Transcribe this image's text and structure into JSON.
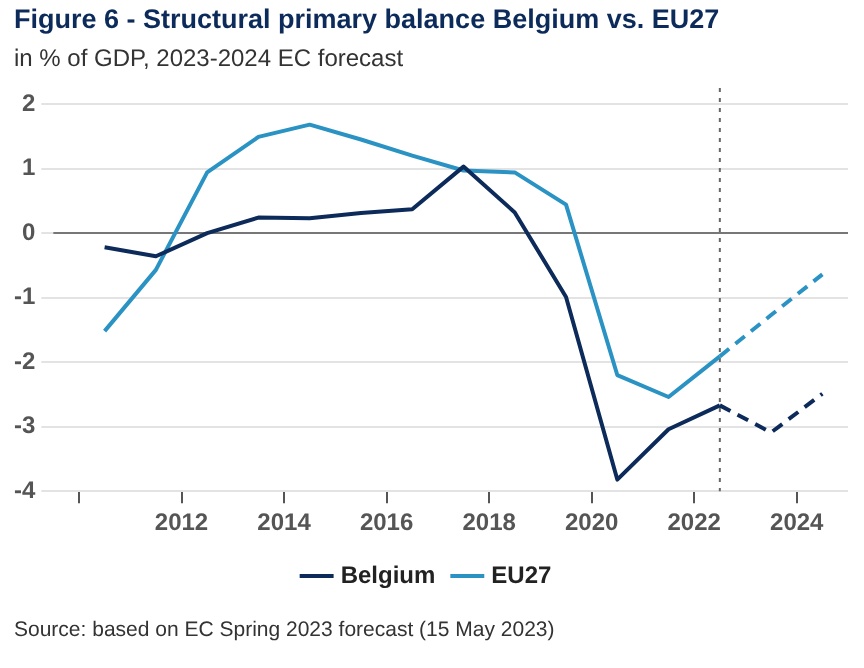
{
  "chart_data": {
    "type": "line",
    "title": "Figure 6 - Structural primary balance Belgium vs. EU27",
    "subtitle": "in % of GDP, 2023-2024 EC forecast",
    "x": [
      2010.5,
      2011.5,
      2012.5,
      2013.5,
      2014.5,
      2015.5,
      2016.5,
      2017.5,
      2018.5,
      2019.5,
      2020.5,
      2021.5,
      2022.5,
      2023.5,
      2024.5
    ],
    "series": [
      {
        "name": "Belgium",
        "color": "#0d2b5a",
        "values": [
          -0.22,
          -0.36,
          0.0,
          0.24,
          0.23,
          0.31,
          0.37,
          1.03,
          0.32,
          -0.99,
          -3.82,
          -3.04,
          -2.67,
          null,
          null
        ]
      },
      {
        "name": "EU27",
        "color": "#2a93c4",
        "values": [
          -1.52,
          -0.57,
          0.94,
          1.49,
          1.68,
          1.45,
          1.2,
          0.97,
          0.94,
          0.44,
          -2.2,
          -2.54,
          -1.91,
          null,
          null
        ]
      },
      {
        "color": "#0d2b5a",
        "line_style": "dashed",
        "values": [
          null,
          null,
          null,
          null,
          null,
          null,
          null,
          null,
          null,
          null,
          null,
          null,
          -2.67,
          -3.09,
          -2.49
        ]
      },
      {
        "color": "#2a93c4",
        "line_style": "dashed",
        "values": [
          null,
          null,
          null,
          null,
          null,
          null,
          null,
          null,
          null,
          null,
          null,
          null,
          -1.91,
          -1.27,
          -0.64
        ]
      }
    ],
    "xlim": [
      2009.5,
      2025
    ],
    "xticks": [
      {
        "value": 2010,
        "label": null
      },
      2012,
      2014,
      2016,
      2018,
      2020,
      2022,
      2024
    ],
    "ylim": [
      -4,
      2
    ],
    "yticks": [
      -4,
      -3,
      -2,
      -1,
      0,
      1,
      2
    ],
    "ref_lines": [
      {
        "axis": "y",
        "value": 0,
        "color": "#777777"
      },
      {
        "axis": "x",
        "value": 2022.5,
        "color": "#666666",
        "line_style": "dotted"
      }
    ],
    "grid": "y",
    "legend": "bottom",
    "line_style": "solid",
    "marker": "none",
    "annotations": [
      "Source: based on EC Spring 2023 forecast (15 May 2023)"
    ]
  }
}
